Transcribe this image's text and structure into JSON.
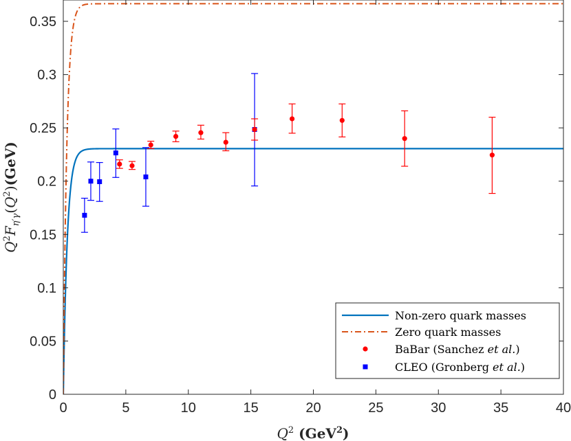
{
  "chart_data": {
    "type": "line",
    "title": "",
    "xlabel": "Q² (GeV²)",
    "ylabel": "Q²F_{η′γ}(Q²) (GeV)",
    "xlim": [
      0,
      40
    ],
    "ylim": [
      0,
      0.37
    ],
    "grid": false,
    "legend_position": "bottom-right",
    "x_ticks": [
      "0",
      "5",
      "10",
      "15",
      "20",
      "25",
      "30",
      "35",
      "40"
    ],
    "y_ticks": [
      "0",
      "0.05",
      "0.1",
      "0.15",
      "0.2",
      "0.25",
      "0.3",
      "0.35"
    ],
    "colors": {
      "nonzero": "#0072BD",
      "zero": "#D95319",
      "babar": "#ff0000",
      "cleo": "#0000ff",
      "axis": "#262626"
    },
    "curves": [
      {
        "name": "Non-zero quark masses",
        "style": "solid",
        "asymptote": 0.2305,
        "rise_scale": 0.32
      },
      {
        "name": "Zero quark masses",
        "style": "dashdot",
        "asymptote": 0.3665,
        "rise_scale": 0.28
      }
    ],
    "babar": {
      "name_parts": [
        "BaBar (Sanchez ",
        "et al.",
        ")"
      ],
      "points": [
        {
          "x": 4.5,
          "y": 0.216,
          "lo": 0.212,
          "hi": 0.22
        },
        {
          "x": 5.5,
          "y": 0.2145,
          "lo": 0.211,
          "hi": 0.2185
        },
        {
          "x": 7.0,
          "y": 0.234,
          "lo": 0.2305,
          "hi": 0.2375
        },
        {
          "x": 9.0,
          "y": 0.242,
          "lo": 0.237,
          "hi": 0.247
        },
        {
          "x": 11.0,
          "y": 0.2455,
          "lo": 0.2395,
          "hi": 0.2525
        },
        {
          "x": 13.0,
          "y": 0.2365,
          "lo": 0.2285,
          "hi": 0.2455
        },
        {
          "x": 15.3,
          "y": 0.2485,
          "lo": 0.2385,
          "hi": 0.2585
        },
        {
          "x": 18.3,
          "y": 0.2585,
          "lo": 0.245,
          "hi": 0.2725
        },
        {
          "x": 22.3,
          "y": 0.257,
          "lo": 0.2415,
          "hi": 0.2725
        },
        {
          "x": 27.3,
          "y": 0.24,
          "lo": 0.214,
          "hi": 0.266
        },
        {
          "x": 34.3,
          "y": 0.2245,
          "lo": 0.1885,
          "hi": 0.26
        }
      ]
    },
    "cleo": {
      "name_parts": [
        "CLEO (Gronberg ",
        "et al.",
        ")"
      ],
      "points": [
        {
          "x": 1.7,
          "y": 0.168,
          "lo": 0.152,
          "hi": 0.184
        },
        {
          "x": 2.2,
          "y": 0.2,
          "lo": 0.182,
          "hi": 0.218
        },
        {
          "x": 2.9,
          "y": 0.1995,
          "lo": 0.181,
          "hi": 0.2175
        },
        {
          "x": 4.2,
          "y": 0.2265,
          "lo": 0.2035,
          "hi": 0.249
        },
        {
          "x": 6.6,
          "y": 0.204,
          "lo": 0.1765,
          "hi": 0.2315
        },
        {
          "x": 15.3,
          "y": 0.2485,
          "lo": 0.1955,
          "hi": 0.301
        }
      ]
    }
  }
}
